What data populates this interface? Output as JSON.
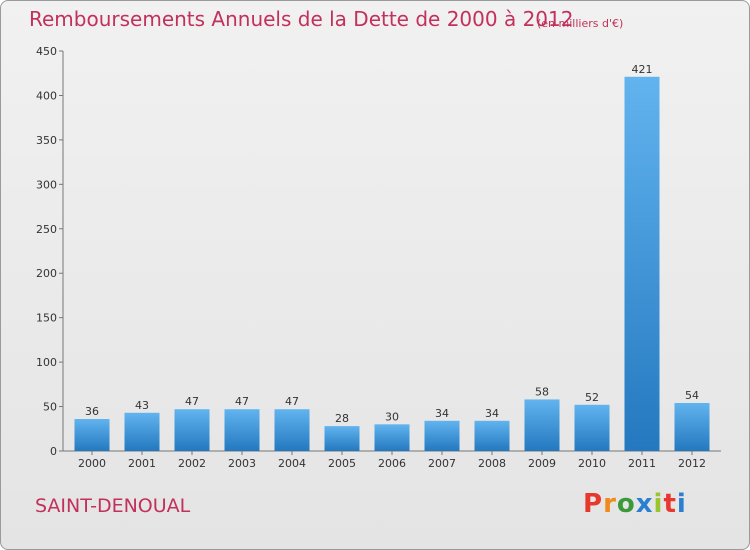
{
  "title": "Remboursements Annuels de la Dette de 2000 à 2012",
  "subtitle": "(en milliers d'€)",
  "commune": "SAINT-DENOUAL",
  "logo": {
    "letters": [
      "P",
      "r",
      "o",
      "x",
      "i",
      "t",
      "i"
    ],
    "colors": [
      "#e8372c",
      "#f08a1c",
      "#3a9a3a",
      "#2a7fd0",
      "#9bc431",
      "#e8372c",
      "#2a7fd0"
    ]
  },
  "colors": {
    "title": "#c2305b",
    "bar_light": "#62b4ef",
    "bar_dark": "#2378bf"
  },
  "chart_data": {
    "type": "bar",
    "categories": [
      "2000",
      "2001",
      "2002",
      "2003",
      "2004",
      "2005",
      "2006",
      "2007",
      "2008",
      "2009",
      "2010",
      "2011",
      "2012"
    ],
    "values": [
      36,
      43,
      47,
      47,
      47,
      28,
      30,
      34,
      34,
      58,
      52,
      421,
      54
    ],
    "ylim": [
      0,
      450
    ],
    "yticks": [
      0,
      50,
      100,
      150,
      200,
      250,
      300,
      350,
      400,
      450
    ],
    "grid": false,
    "legend": "none"
  }
}
